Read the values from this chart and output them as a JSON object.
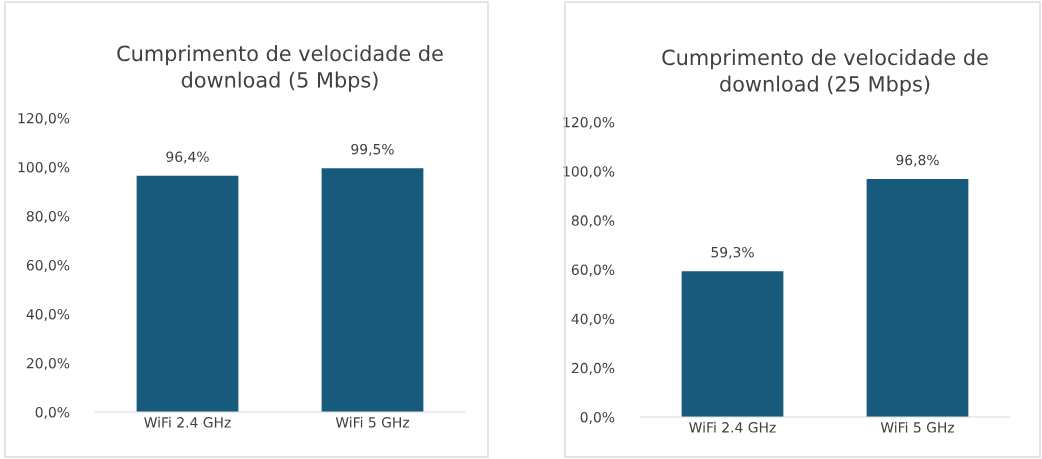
{
  "chart_data": [
    {
      "type": "bar",
      "title": "Cumprimento de velocidade de\ndownload (5 Mbps)",
      "categories": [
        "WiFi 2.4 GHz",
        "WiFi 5 GHz"
      ],
      "values": [
        96.4,
        99.5
      ],
      "color": "#175a7c",
      "value_labels": [
        "96,4%",
        "99,5%"
      ],
      "ylim": [
        0,
        120
      ],
      "yticks": [
        {
          "value": 0,
          "label": "0,0%"
        },
        {
          "value": 20,
          "label": "20,0%"
        },
        {
          "value": 40,
          "label": "40,0%"
        },
        {
          "value": 60,
          "label": "60,0%"
        },
        {
          "value": 80,
          "label": "80,0%"
        },
        {
          "value": 100,
          "label": "100,0%"
        },
        {
          "value": 120,
          "label": "120,0%"
        }
      ],
      "grid": false
    },
    {
      "type": "bar",
      "title": "Cumprimento de velocidade de\ndownload (25 Mbps)",
      "categories": [
        "WiFi 2.4 GHz",
        "WiFi 5 GHz"
      ],
      "values": [
        59.3,
        96.8
      ],
      "color": "#175a7c",
      "value_labels": [
        "59,3%",
        "96,8%"
      ],
      "ylim": [
        0,
        120
      ],
      "yticks": [
        {
          "value": 0,
          "label": "0,0%"
        },
        {
          "value": 20,
          "label": "20,0%"
        },
        {
          "value": 40,
          "label": "40,0%"
        },
        {
          "value": 60,
          "label": "60,0%"
        },
        {
          "value": 80,
          "label": "80,0%"
        },
        {
          "value": 100,
          "label": "100,0%"
        },
        {
          "value": 120,
          "label": "120,0%"
        }
      ],
      "grid": false
    }
  ]
}
